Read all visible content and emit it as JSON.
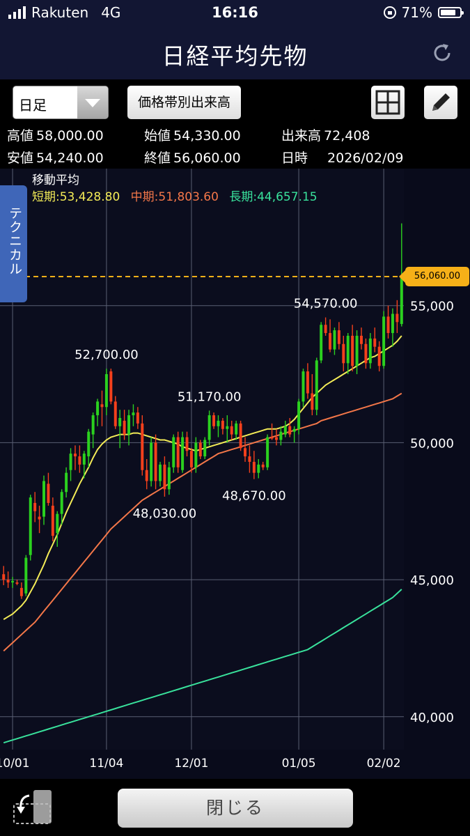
{
  "status_bar": {
    "carrier": "Rakuten",
    "network": "4G",
    "time": "16:16",
    "battery": "71%",
    "battery_level": 0.71
  },
  "header": {
    "title": "日経平均先物"
  },
  "toolbar": {
    "period": "日足",
    "volume_button": "価格帯別出来高"
  },
  "quote": {
    "high_label": "高値",
    "high": "58,000.00",
    "open_label": "始値",
    "open": "54,330.00",
    "volume_label": "出来高",
    "volume": "72,408",
    "low_label": "安値",
    "low": "54,240.00",
    "close_label": "終値",
    "close": "56,060.00",
    "date_label": "日時",
    "date": "2026/02/09"
  },
  "technical_tab": "テクニカル",
  "moving_average": {
    "title": "移動平均",
    "short_label": "短期:",
    "short_value": "53,428.80",
    "mid_label": "中期:",
    "mid_value": "51,803.60",
    "long_label": "長期:",
    "long_value": "44,657.15"
  },
  "chart_data": {
    "type": "candlestick",
    "ylim": [
      38800,
      60000
    ],
    "y_ticks": [
      "40,000",
      "45,000",
      "50,000",
      "55,000"
    ],
    "y_tick_values": [
      40000,
      45000,
      50000,
      55000
    ],
    "x_tick_labels": [
      "10/01",
      "11/04",
      "12/01",
      "01/05",
      "02/02"
    ],
    "x_tick_index": [
      2,
      23,
      42,
      66,
      85
    ],
    "current_price": 56060,
    "current_price_label": "56,060.00",
    "annotations": [
      {
        "text": "52,700.00",
        "index": 23,
        "value": 52700,
        "pos": "above"
      },
      {
        "text": "48,030.00",
        "index": 36,
        "value": 48030,
        "pos": "below"
      },
      {
        "text": "51,170.00",
        "index": 46,
        "value": 51170,
        "pos": "above"
      },
      {
        "text": "48,670.00",
        "index": 56,
        "value": 48670,
        "pos": "below"
      },
      {
        "text": "54,570.00",
        "index": 72,
        "value": 54570,
        "pos": "above"
      }
    ],
    "candles": [
      [
        45200,
        45500,
        44800,
        45000
      ],
      [
        45000,
        45300,
        44700,
        44900
      ],
      [
        44900,
        45100,
        44700,
        44950
      ],
      [
        44900,
        45000,
        44800,
        44850
      ],
      [
        44700,
        44900,
        44300,
        44400
      ],
      [
        44500,
        45900,
        44400,
        45800
      ],
      [
        45900,
        48100,
        45700,
        48000
      ],
      [
        47800,
        48200,
        47100,
        47500
      ],
      [
        47300,
        47700,
        46700,
        47200
      ],
      [
        47300,
        48800,
        47000,
        48600
      ],
      [
        48500,
        48900,
        47700,
        47800
      ],
      [
        47700,
        48000,
        46400,
        46600
      ],
      [
        46700,
        47500,
        46200,
        47400
      ],
      [
        47400,
        48300,
        47000,
        48200
      ],
      [
        48200,
        49100,
        48000,
        48900
      ],
      [
        49000,
        49800,
        48600,
        49600
      ],
      [
        49600,
        49900,
        49000,
        49500
      ],
      [
        49500,
        49900,
        48900,
        49200
      ],
      [
        49200,
        49700,
        48700,
        49600
      ],
      [
        49500,
        50500,
        49100,
        50400
      ],
      [
        50300,
        51100,
        49800,
        51000
      ],
      [
        51000,
        51600,
        50600,
        51500
      ],
      [
        51400,
        51900,
        50600,
        51300
      ],
      [
        51300,
        52700,
        51000,
        52500
      ],
      [
        52600,
        52700,
        51400,
        51500
      ],
      [
        51500,
        51700,
        50500,
        50600
      ],
      [
        50600,
        51200,
        49800,
        50900
      ],
      [
        50800,
        51200,
        50100,
        50300
      ],
      [
        50300,
        51200,
        49900,
        51000
      ],
      [
        51000,
        51400,
        50600,
        51100
      ],
      [
        51100,
        51300,
        50500,
        50700
      ],
      [
        50700,
        51000,
        48800,
        49000
      ],
      [
        49000,
        49400,
        48300,
        48600
      ],
      [
        48600,
        50200,
        48400,
        50000
      ],
      [
        50000,
        50300,
        48300,
        48600
      ],
      [
        48600,
        49300,
        48400,
        49200
      ],
      [
        49200,
        49500,
        48030,
        48300
      ],
      [
        48300,
        49300,
        48100,
        49100
      ],
      [
        49100,
        50300,
        48900,
        50200
      ],
      [
        50200,
        50400,
        48900,
        49100
      ],
      [
        49000,
        50400,
        48900,
        50200
      ],
      [
        50200,
        50400,
        49500,
        49700
      ],
      [
        49700,
        49800,
        48900,
        49100
      ],
      [
        49100,
        50200,
        48900,
        50000
      ],
      [
        50000,
        50100,
        49400,
        49500
      ],
      [
        49500,
        50200,
        49400,
        50100
      ],
      [
        50100,
        51170,
        49900,
        51000
      ],
      [
        51000,
        51100,
        50500,
        50600
      ],
      [
        50600,
        51000,
        50200,
        50800
      ],
      [
        50800,
        50900,
        50300,
        50500
      ],
      [
        50500,
        51000,
        50000,
        50600
      ],
      [
        50600,
        50800,
        50100,
        50300
      ],
      [
        50300,
        50800,
        50100,
        50700
      ],
      [
        50700,
        50800,
        49700,
        49800
      ],
      [
        49800,
        50200,
        49300,
        49500
      ],
      [
        49500,
        49900,
        48900,
        49300
      ],
      [
        49300,
        49700,
        48670,
        48900
      ],
      [
        48900,
        49400,
        48700,
        49200
      ],
      [
        49200,
        49300,
        49000,
        49100
      ],
      [
        49100,
        50300,
        49000,
        50200
      ],
      [
        50200,
        50700,
        50100,
        50150
      ],
      [
        50200,
        50500,
        49900,
        50100
      ],
      [
        50100,
        50600,
        49900,
        50400
      ],
      [
        50300,
        50800,
        50200,
        50600
      ],
      [
        50600,
        50900,
        50200,
        50300
      ],
      [
        50400,
        50600,
        50000,
        50500
      ],
      [
        50500,
        51600,
        50300,
        51500
      ],
      [
        51500,
        52700,
        51300,
        52600
      ],
      [
        52600,
        52900,
        51600,
        51800
      ],
      [
        51800,
        52500,
        51000,
        51200
      ],
      [
        51200,
        53100,
        51000,
        53000
      ],
      [
        53000,
        54400,
        52900,
        54300
      ],
      [
        54300,
        54570,
        53900,
        54000
      ],
      [
        54000,
        54500,
        53300,
        53400
      ],
      [
        53400,
        54200,
        53200,
        54100
      ],
      [
        54100,
        54400,
        53400,
        53600
      ],
      [
        53600,
        53900,
        52600,
        52900
      ],
      [
        52900,
        54000,
        52500,
        53900
      ],
      [
        53900,
        54300,
        52600,
        52800
      ],
      [
        52800,
        54100,
        52500,
        53900
      ],
      [
        53900,
        54200,
        53400,
        53600
      ],
      [
        53600,
        53800,
        52700,
        52900
      ],
      [
        52900,
        54000,
        52700,
        53800
      ],
      [
        53800,
        54200,
        53300,
        53500
      ],
      [
        53500,
        53700,
        52600,
        52800
      ],
      [
        52800,
        54800,
        52700,
        54600
      ],
      [
        54600,
        55000,
        53800,
        54000
      ],
      [
        54000,
        54900,
        53500,
        54700
      ],
      [
        54700,
        55200,
        54000,
        54400
      ],
      [
        54330,
        58000,
        54240,
        56060
      ]
    ],
    "series": [
      {
        "name": "短期",
        "color": "#f4ec57",
        "values": [
          43550,
          43650,
          43750,
          43900,
          44050,
          44250,
          44550,
          44850,
          45200,
          45550,
          45950,
          46300,
          46650,
          47050,
          47450,
          47800,
          48150,
          48500,
          48800,
          49100,
          49450,
          49750,
          49950,
          50100,
          50200,
          50250,
          50300,
          50300,
          50300,
          50350,
          50350,
          50300,
          50250,
          50200,
          50150,
          50100,
          50100,
          50050,
          50000,
          49950,
          49850,
          49800,
          49750,
          49700,
          49750,
          49800,
          49850,
          49900,
          49950,
          50000,
          50050,
          50100,
          50150,
          50200,
          50250,
          50300,
          50350,
          50400,
          50450,
          50500,
          50500,
          50500,
          50550,
          50600,
          50700,
          50850,
          51050,
          51250,
          51450,
          51650,
          51800,
          51950,
          52100,
          52200,
          52300,
          52400,
          52500,
          52600,
          52700,
          52800,
          52900,
          53000,
          53100,
          53150,
          53250,
          53350,
          53450,
          53550,
          53700,
          53900
        ]
      },
      {
        "name": "中期",
        "color": "#f47749",
        "values": [
          42400,
          42550,
          42700,
          42850,
          43000,
          43150,
          43300,
          43450,
          43650,
          43850,
          44050,
          44250,
          44450,
          44650,
          44850,
          45050,
          45250,
          45450,
          45650,
          45850,
          46050,
          46250,
          46450,
          46650,
          46850,
          47000,
          47150,
          47300,
          47450,
          47600,
          47750,
          47900,
          48000,
          48100,
          48200,
          48300,
          48400,
          48500,
          48600,
          48700,
          48800,
          48900,
          49000,
          49100,
          49200,
          49300,
          49400,
          49500,
          49600,
          49650,
          49700,
          49750,
          49800,
          49850,
          49900,
          49950,
          50000,
          50050,
          50100,
          50150,
          50200,
          50250,
          50300,
          50350,
          50400,
          50450,
          50500,
          50550,
          50600,
          50650,
          50700,
          50800,
          50850,
          50900,
          50950,
          51000,
          51050,
          51100,
          51150,
          51200,
          51250,
          51300,
          51350,
          51400,
          51450,
          51500,
          51550,
          51600,
          51700,
          51800
        ]
      },
      {
        "name": "長期",
        "color": "#39e29c",
        "values": [
          39050,
          39100,
          39150,
          39200,
          39250,
          39300,
          39350,
          39400,
          39450,
          39500,
          39550,
          39600,
          39650,
          39700,
          39750,
          39800,
          39850,
          39900,
          39950,
          40000,
          40050,
          40100,
          40150,
          40200,
          40250,
          40300,
          40350,
          40400,
          40450,
          40500,
          40550,
          40600,
          40650,
          40700,
          40750,
          40800,
          40850,
          40900,
          40950,
          41000,
          41050,
          41100,
          41150,
          41200,
          41250,
          41300,
          41350,
          41400,
          41450,
          41500,
          41550,
          41600,
          41650,
          41700,
          41750,
          41800,
          41850,
          41900,
          41950,
          42000,
          42050,
          42100,
          42150,
          42200,
          42250,
          42300,
          42350,
          42400,
          42450,
          42550,
          42650,
          42750,
          42850,
          42950,
          43050,
          43150,
          43250,
          43350,
          43450,
          43550,
          43650,
          43750,
          43850,
          43950,
          44050,
          44150,
          44250,
          44350,
          44500,
          44650
        ]
      }
    ],
    "up_color": "#2bd11f",
    "down_color": "#f4401c",
    "grid": true
  },
  "bottom": {
    "close_button": "閉じる"
  }
}
